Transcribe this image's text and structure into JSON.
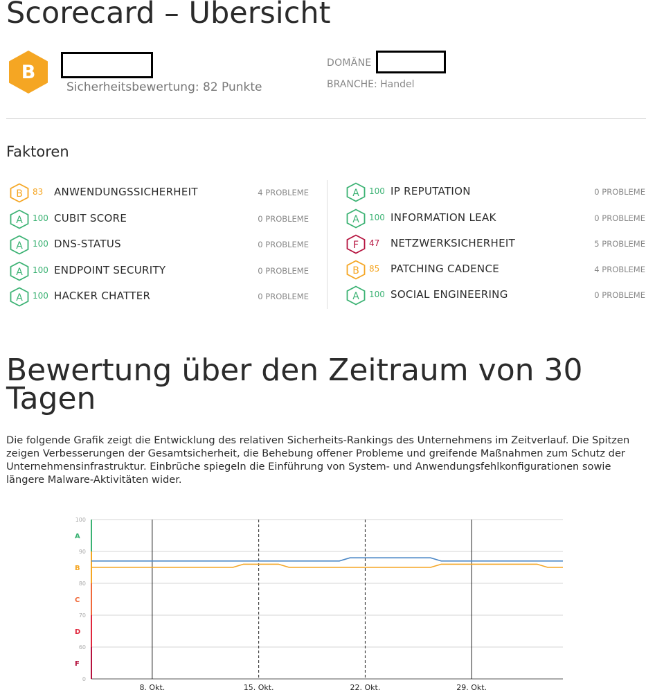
{
  "page_title": "Scorecard – Übersicht",
  "overview": {
    "grade": "B",
    "grade_color": "#f5a623",
    "score_text": "Sicherheitsbewertung: 82 Punkte",
    "domain_label": "DOMÄNE",
    "industry_text": "BRANCHE: Handel"
  },
  "factors_title": "Faktoren",
  "factors_left": [
    {
      "grade": "B",
      "score": "83",
      "name": "ANWENDUNGSSICHERHEIT",
      "issues": "4 PROBLEME",
      "color": "#f5a623"
    },
    {
      "grade": "A",
      "score": "100",
      "name": "CUBIT SCORE",
      "issues": "0 PROBLEME",
      "color": "#3bb273"
    },
    {
      "grade": "A",
      "score": "100",
      "name": "DNS-STATUS",
      "issues": "0 PROBLEME",
      "color": "#3bb273"
    },
    {
      "grade": "A",
      "score": "100",
      "name": "ENDPOINT SECURITY",
      "issues": "0 PROBLEME",
      "color": "#3bb273"
    },
    {
      "grade": "A",
      "score": "100",
      "name": "HACKER CHATTER",
      "issues": "0 PROBLEME",
      "color": "#3bb273"
    }
  ],
  "factors_right": [
    {
      "grade": "A",
      "score": "100",
      "name": "IP REPUTATION",
      "issues": "0 PROBLEME",
      "color": "#3bb273"
    },
    {
      "grade": "A",
      "score": "100",
      "name": "INFORMATION LEAK",
      "issues": "0 PROBLEME",
      "color": "#3bb273"
    },
    {
      "grade": "F",
      "score": "47",
      "name": "NETZWERKSICHERHEIT",
      "issues": "5 PROBLEME",
      "color": "#b5123e"
    },
    {
      "grade": "B",
      "score": "85",
      "name": "PATCHING CADENCE",
      "issues": "4 PROBLEME",
      "color": "#f5a623"
    },
    {
      "grade": "A",
      "score": "100",
      "name": "SOCIAL ENGINEERING",
      "issues": "0 PROBLEME",
      "color": "#3bb273"
    }
  ],
  "section_title": "Bewertung über den Zeitraum von 30 Tagen",
  "description": "Die folgende Grafik zeigt die Entwicklung des relativen Sicherheits-Rankings des Unternehmens im Zeitverlauf. Die Spitzen zeigen Verbesserungen der Gesamtsicherheit, die Behebung offener Probleme und greifende Maßnahmen zum Schutz der Unternehmensinfrastruktur. Einbrüche spiegeln die Einführung von System- und Anwendungsfehlkonfigurationen sowie längere Malware-Aktivitäten wider.",
  "chart_data": {
    "type": "line",
    "ylim": [
      0,
      100
    ],
    "y_ticks": [
      "0",
      "60",
      "70",
      "80",
      "90",
      "100"
    ],
    "grade_bands": [
      {
        "label": "A",
        "color": "#3bb273"
      },
      {
        "label": "B",
        "color": "#f5a623"
      },
      {
        "label": "C",
        "color": "#f0693a"
      },
      {
        "label": "D",
        "color": "#e0263c"
      },
      {
        "label": "F",
        "color": "#b5123e"
      }
    ],
    "x_ticks": [
      "8. Okt.",
      "15. Okt.",
      "22. Okt.",
      "29. Okt."
    ],
    "series": [
      {
        "color": "#4a86c5",
        "values": [
          87,
          87,
          87,
          87,
          87,
          87,
          87,
          87,
          87,
          87,
          87,
          87,
          87,
          87,
          87,
          87,
          87,
          88,
          88,
          88,
          88,
          88,
          88,
          87,
          87,
          87,
          87,
          87,
          87,
          87,
          87,
          87
        ]
      },
      {
        "color": "#f5a623",
        "values": [
          85,
          85,
          85,
          85,
          85,
          85,
          85,
          85,
          85,
          85,
          86,
          86,
          86,
          85,
          85,
          85,
          85,
          85,
          85,
          85,
          85,
          85,
          85,
          86,
          86,
          86,
          86,
          86,
          86,
          86,
          85,
          85
        ]
      }
    ]
  }
}
